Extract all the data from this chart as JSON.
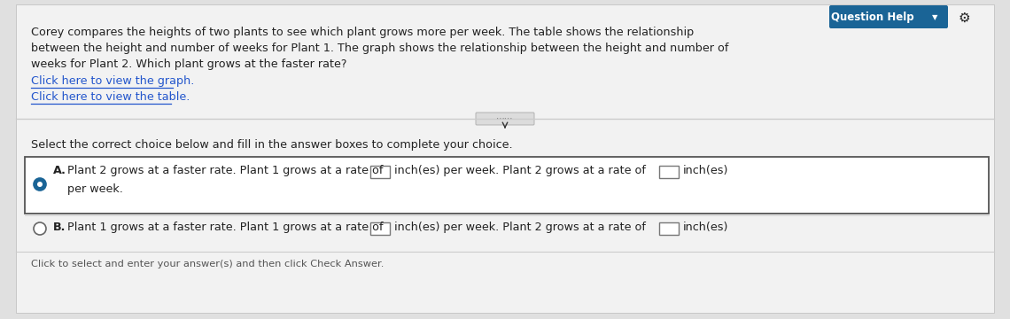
{
  "bg_color": "#e0e0e0",
  "panel_color": "#f2f2f2",
  "white": "#ffffff",
  "question_help_bg": "#1a6496",
  "question_help_text": "Question Help",
  "main_text_line1": "Corey compares the heights of two plants to see which plant grows more per week. The table shows the relationship",
  "main_text_line2": "between the height and number of weeks for Plant 1. The graph shows the relationship between the height and number of",
  "main_text_line3": "weeks for Plant 2. Which plant grows at the faster rate?",
  "link1": "Click here to view the graph.",
  "link2": "Click here to view the table.",
  "select_text": "Select the correct choice below and fill in the answer boxes to complete your choice.",
  "choice_A_label": "A.",
  "choice_A_text1": "Plant 2 grows at a faster rate. Plant 1 grows at a rate of",
  "choice_A_text2": "inch(es) per week. Plant 2 grows at a rate of",
  "choice_A_text3": "inch(es)",
  "choice_A_text4": "per week.",
  "choice_B_label": "B.",
  "choice_B_text1": "Plant 1 grows at a faster rate. Plant 1 grows at a rate of",
  "choice_B_text2": "inch(es) per week. Plant 2 grows at a rate of",
  "choice_B_text3": "inch(es)",
  "footer_text": "Click to select and enter your answer(s) and then click Check Answer.",
  "link_color": "#2255cc",
  "text_color": "#222222",
  "footer_color": "#555555",
  "selected_radio_color": "#1a6496",
  "separator_color": "#cccccc"
}
